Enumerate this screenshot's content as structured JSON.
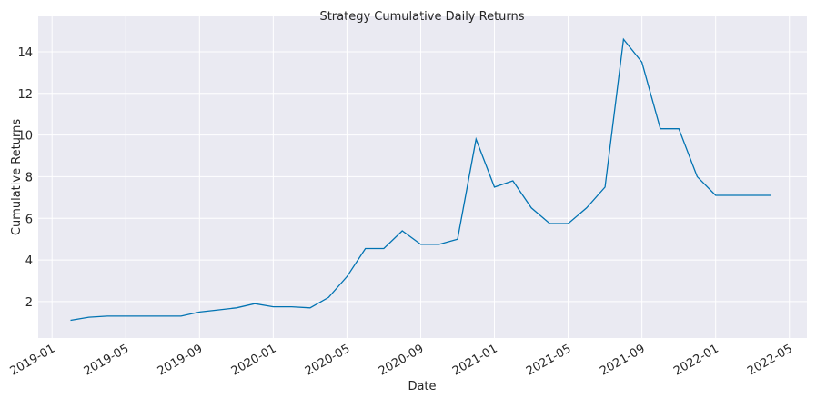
{
  "chart_data": {
    "type": "line",
    "title": "Strategy Cumulative Daily Returns",
    "x_label": "Date",
    "y_label": "Cumulative Returns",
    "x": [
      "2019-02",
      "2019-03",
      "2019-04",
      "2019-05",
      "2019-06",
      "2019-07",
      "2019-08",
      "2019-09",
      "2019-10",
      "2019-11",
      "2019-12",
      "2020-01",
      "2020-02",
      "2020-03",
      "2020-04",
      "2020-05",
      "2020-06",
      "2020-07",
      "2020-08",
      "2020-09",
      "2020-10",
      "2020-11",
      "2020-12",
      "2021-01",
      "2021-02",
      "2021-03",
      "2021-04",
      "2021-05",
      "2021-06",
      "2021-07",
      "2021-08",
      "2021-09",
      "2021-10",
      "2021-11",
      "2021-12",
      "2022-01",
      "2022-02",
      "2022-03",
      "2022-04"
    ],
    "series": [
      {
        "name": "Cumulative Returns",
        "color": "#0173b2",
        "values": [
          1.1,
          1.25,
          1.3,
          1.3,
          1.3,
          1.3,
          1.3,
          1.5,
          1.6,
          1.7,
          1.9,
          1.75,
          1.75,
          1.7,
          2.2,
          3.2,
          4.55,
          4.55,
          5.4,
          4.75,
          4.75,
          5.0,
          9.8,
          7.5,
          7.8,
          6.5,
          5.75,
          5.75,
          6.5,
          7.5,
          14.6,
          13.5,
          10.3,
          10.3,
          8.0,
          7.1,
          7.1,
          7.1,
          7.1
        ]
      }
    ],
    "xlim": [
      "2018-12",
      "2022-06"
    ],
    "ylim": [
      0.25,
      15.7
    ],
    "xticks": [
      "2019-01",
      "2019-05",
      "2019-09",
      "2020-01",
      "2020-05",
      "2020-09",
      "2021-01",
      "2021-05",
      "2021-09",
      "2022-01",
      "2022-05"
    ],
    "yticks": [
      2,
      4,
      6,
      8,
      10,
      12,
      14
    ],
    "grid": true
  }
}
